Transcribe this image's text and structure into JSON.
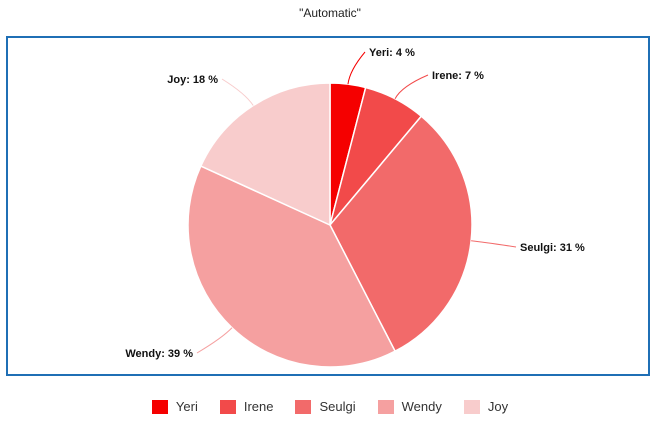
{
  "chart_data": {
    "type": "pie",
    "title": "\"Automatic\"",
    "categories": [
      "Yeri",
      "Irene",
      "Seulgi",
      "Wendy",
      "Joy"
    ],
    "values": [
      4,
      7,
      31,
      39,
      18
    ],
    "value_suffix": " %",
    "colors": [
      "#f50000",
      "#f24a4a",
      "#f26a6a",
      "#f5a0a0",
      "#f8cccc"
    ],
    "legend_position": "bottom"
  }
}
